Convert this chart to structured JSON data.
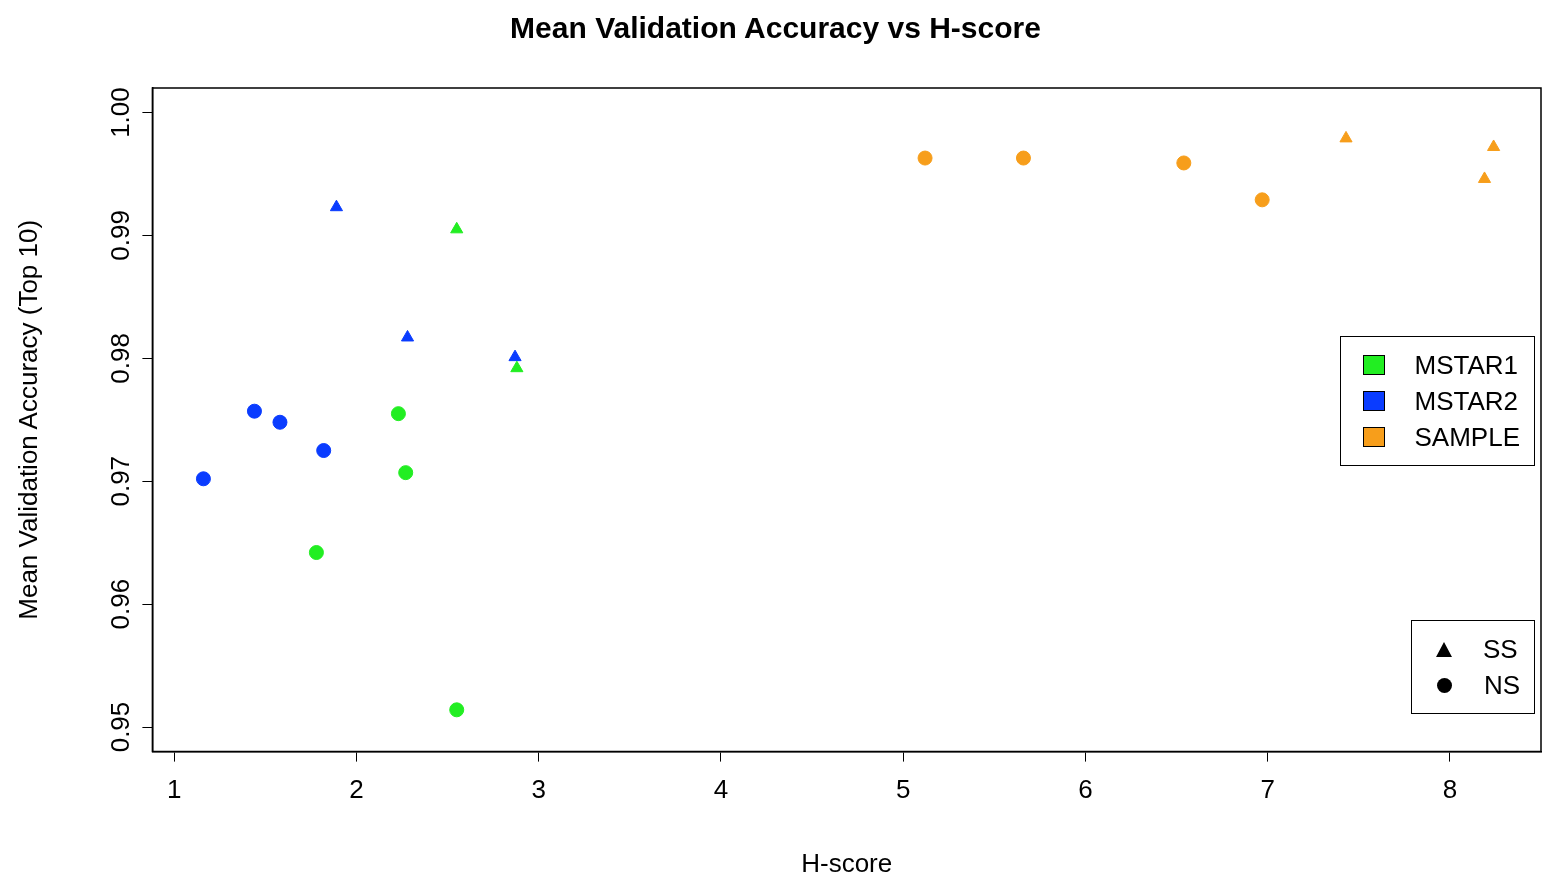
{
  "chart_data": {
    "type": "scatter",
    "title": "Mean Validation Accuracy vs H-score",
    "xlabel": "H-score",
    "ylabel": "Mean Validation Accuracy (Top 10)",
    "xlim": [
      0.88,
      8.5
    ],
    "xticks": [
      1,
      2,
      3,
      4,
      5,
      6,
      7,
      8
    ],
    "ylim": [
      0.948,
      1.002
    ],
    "yticks": [
      {
        "value": 0.95,
        "label": "0.95"
      },
      {
        "value": 0.96,
        "label": "0.96"
      },
      {
        "value": 0.97,
        "label": "0.97"
      },
      {
        "value": 0.98,
        "label": "0.98"
      },
      {
        "value": 0.99,
        "label": "0.99"
      },
      {
        "value": 1.0,
        "label": "1.00"
      }
    ],
    "grid": false,
    "series": [
      {
        "color": "#22ee22",
        "marker": "triangle",
        "x": [
          2.55,
          2.88
        ],
        "values": [
          0.9905,
          0.9792
        ]
      },
      {
        "color": "#22ee22",
        "marker": "circle",
        "x": [
          2.23,
          2.27,
          1.78,
          2.55
        ],
        "values": [
          0.9755,
          0.9707,
          0.9642,
          0.9514
        ]
      },
      {
        "color": "#0a3cff",
        "marker": "triangle",
        "x": [
          1.89,
          2.28,
          2.87
        ],
        "values": [
          0.9923,
          0.9817,
          0.9801
        ]
      },
      {
        "color": "#0a3cff",
        "marker": "circle",
        "x": [
          1.16,
          1.44,
          1.58,
          1.82
        ],
        "values": [
          0.9702,
          0.9757,
          0.9748,
          0.9725
        ]
      },
      {
        "color": "#f79e1b",
        "marker": "triangle",
        "x": [
          7.43,
          8.19,
          8.24
        ],
        "values": [
          0.9979,
          0.9946,
          0.9972
        ]
      },
      {
        "color": "#f79e1b",
        "marker": "circle",
        "x": [
          5.12,
          5.66,
          6.54,
          6.97
        ],
        "values": [
          0.9963,
          0.9963,
          0.9959,
          0.9929
        ]
      }
    ],
    "annotations": [
      "MSTAR1",
      "MSTAR2",
      "SAMPLE",
      "SS",
      "NS"
    ]
  }
}
